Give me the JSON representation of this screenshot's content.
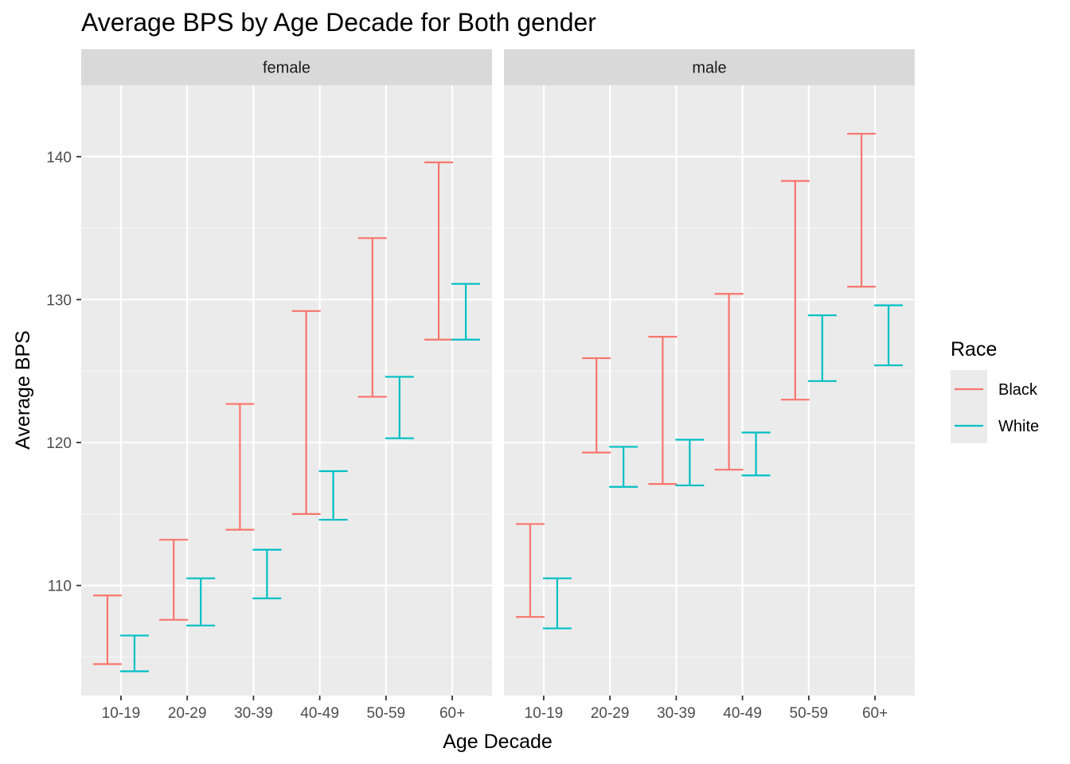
{
  "chart_data": {
    "type": "errorbar",
    "title": "Average BPS by Age Decade for Both gender",
    "xlabel": "Age Decade",
    "ylabel": "Average BPS",
    "categories": [
      "10-19",
      "20-29",
      "30-39",
      "40-49",
      "50-59",
      "60+"
    ],
    "ylim": [
      102.3,
      145
    ],
    "yticks": [
      110,
      120,
      130,
      140
    ],
    "grid": true,
    "legend": {
      "title": "Race",
      "position": "right",
      "entries": [
        {
          "name": "Black",
          "color": "#F8766D"
        },
        {
          "name": "White",
          "color": "#00BFC4"
        }
      ]
    },
    "facets": [
      {
        "label": "female",
        "series": [
          {
            "name": "Black",
            "low": [
              104.5,
              107.6,
              113.9,
              115.0,
              123.2,
              127.2
            ],
            "high": [
              109.3,
              113.2,
              122.7,
              129.2,
              134.3,
              139.6
            ]
          },
          {
            "name": "White",
            "low": [
              104.0,
              107.2,
              109.1,
              114.6,
              120.3,
              127.2
            ],
            "high": [
              106.5,
              110.5,
              112.5,
              118.0,
              124.6,
              131.1
            ]
          }
        ]
      },
      {
        "label": "male",
        "series": [
          {
            "name": "Black",
            "low": [
              107.8,
              119.3,
              117.1,
              118.1,
              123.0,
              130.9
            ],
            "high": [
              114.3,
              125.9,
              127.4,
              130.4,
              138.3,
              141.6
            ]
          },
          {
            "name": "White",
            "low": [
              107.0,
              116.9,
              117.0,
              117.7,
              124.3,
              125.4
            ],
            "high": [
              110.5,
              119.7,
              120.2,
              120.7,
              128.9,
              129.6
            ]
          }
        ]
      }
    ]
  }
}
